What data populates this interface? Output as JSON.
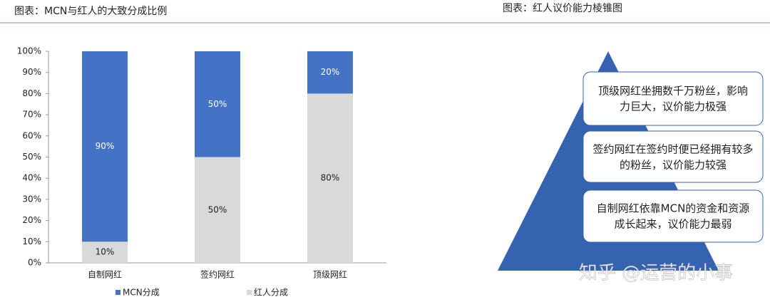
{
  "chart_data": {
    "type": "stacked_bar",
    "title": "图表：MCN与红人的大致分成比例",
    "categories": [
      "自制网红",
      "签约网红",
      "顶级网红"
    ],
    "series": [
      {
        "name": "MCN分成",
        "color": "#4472c4",
        "values": [
          90,
          50,
          20
        ],
        "value_labels": [
          "90%",
          "50%",
          "20%"
        ]
      },
      {
        "name": "红人分成",
        "color": "#d9d9d9",
        "values": [
          10,
          50,
          80
        ],
        "value_labels": [
          "10%",
          "50%",
          "80%"
        ]
      }
    ],
    "ylim": [
      0,
      100
    ],
    "yticks": [
      {
        "value": 0,
        "label": "0%"
      },
      {
        "value": 10,
        "label": "10%"
      },
      {
        "value": 20,
        "label": "20%"
      },
      {
        "value": 30,
        "label": "30%"
      },
      {
        "value": 40,
        "label": "40%"
      },
      {
        "value": 50,
        "label": "50%"
      },
      {
        "value": 60,
        "label": "60%"
      },
      {
        "value": 70,
        "label": "70%"
      },
      {
        "value": 80,
        "label": "80%"
      },
      {
        "value": 90,
        "label": "90%"
      },
      {
        "value": 100,
        "label": "100%"
      }
    ],
    "grid": false,
    "legend": "bottom"
  },
  "diagram": {
    "title": "图表：红人议价能力棱锥图",
    "levels": [
      {
        "lines": [
          "顶级网红坐拥数千万粉丝，影响",
          "力巨大，议价能力极强"
        ]
      },
      {
        "lines": [
          "签约网红在签约时便已经拥有较多",
          "的粉丝，议价能力较强"
        ]
      },
      {
        "lines": [
          "自制网红依靠MCN的资金和资源",
          "成长起来，议价能力最弱"
        ]
      }
    ],
    "watermark": "知乎 @运营的小事"
  }
}
